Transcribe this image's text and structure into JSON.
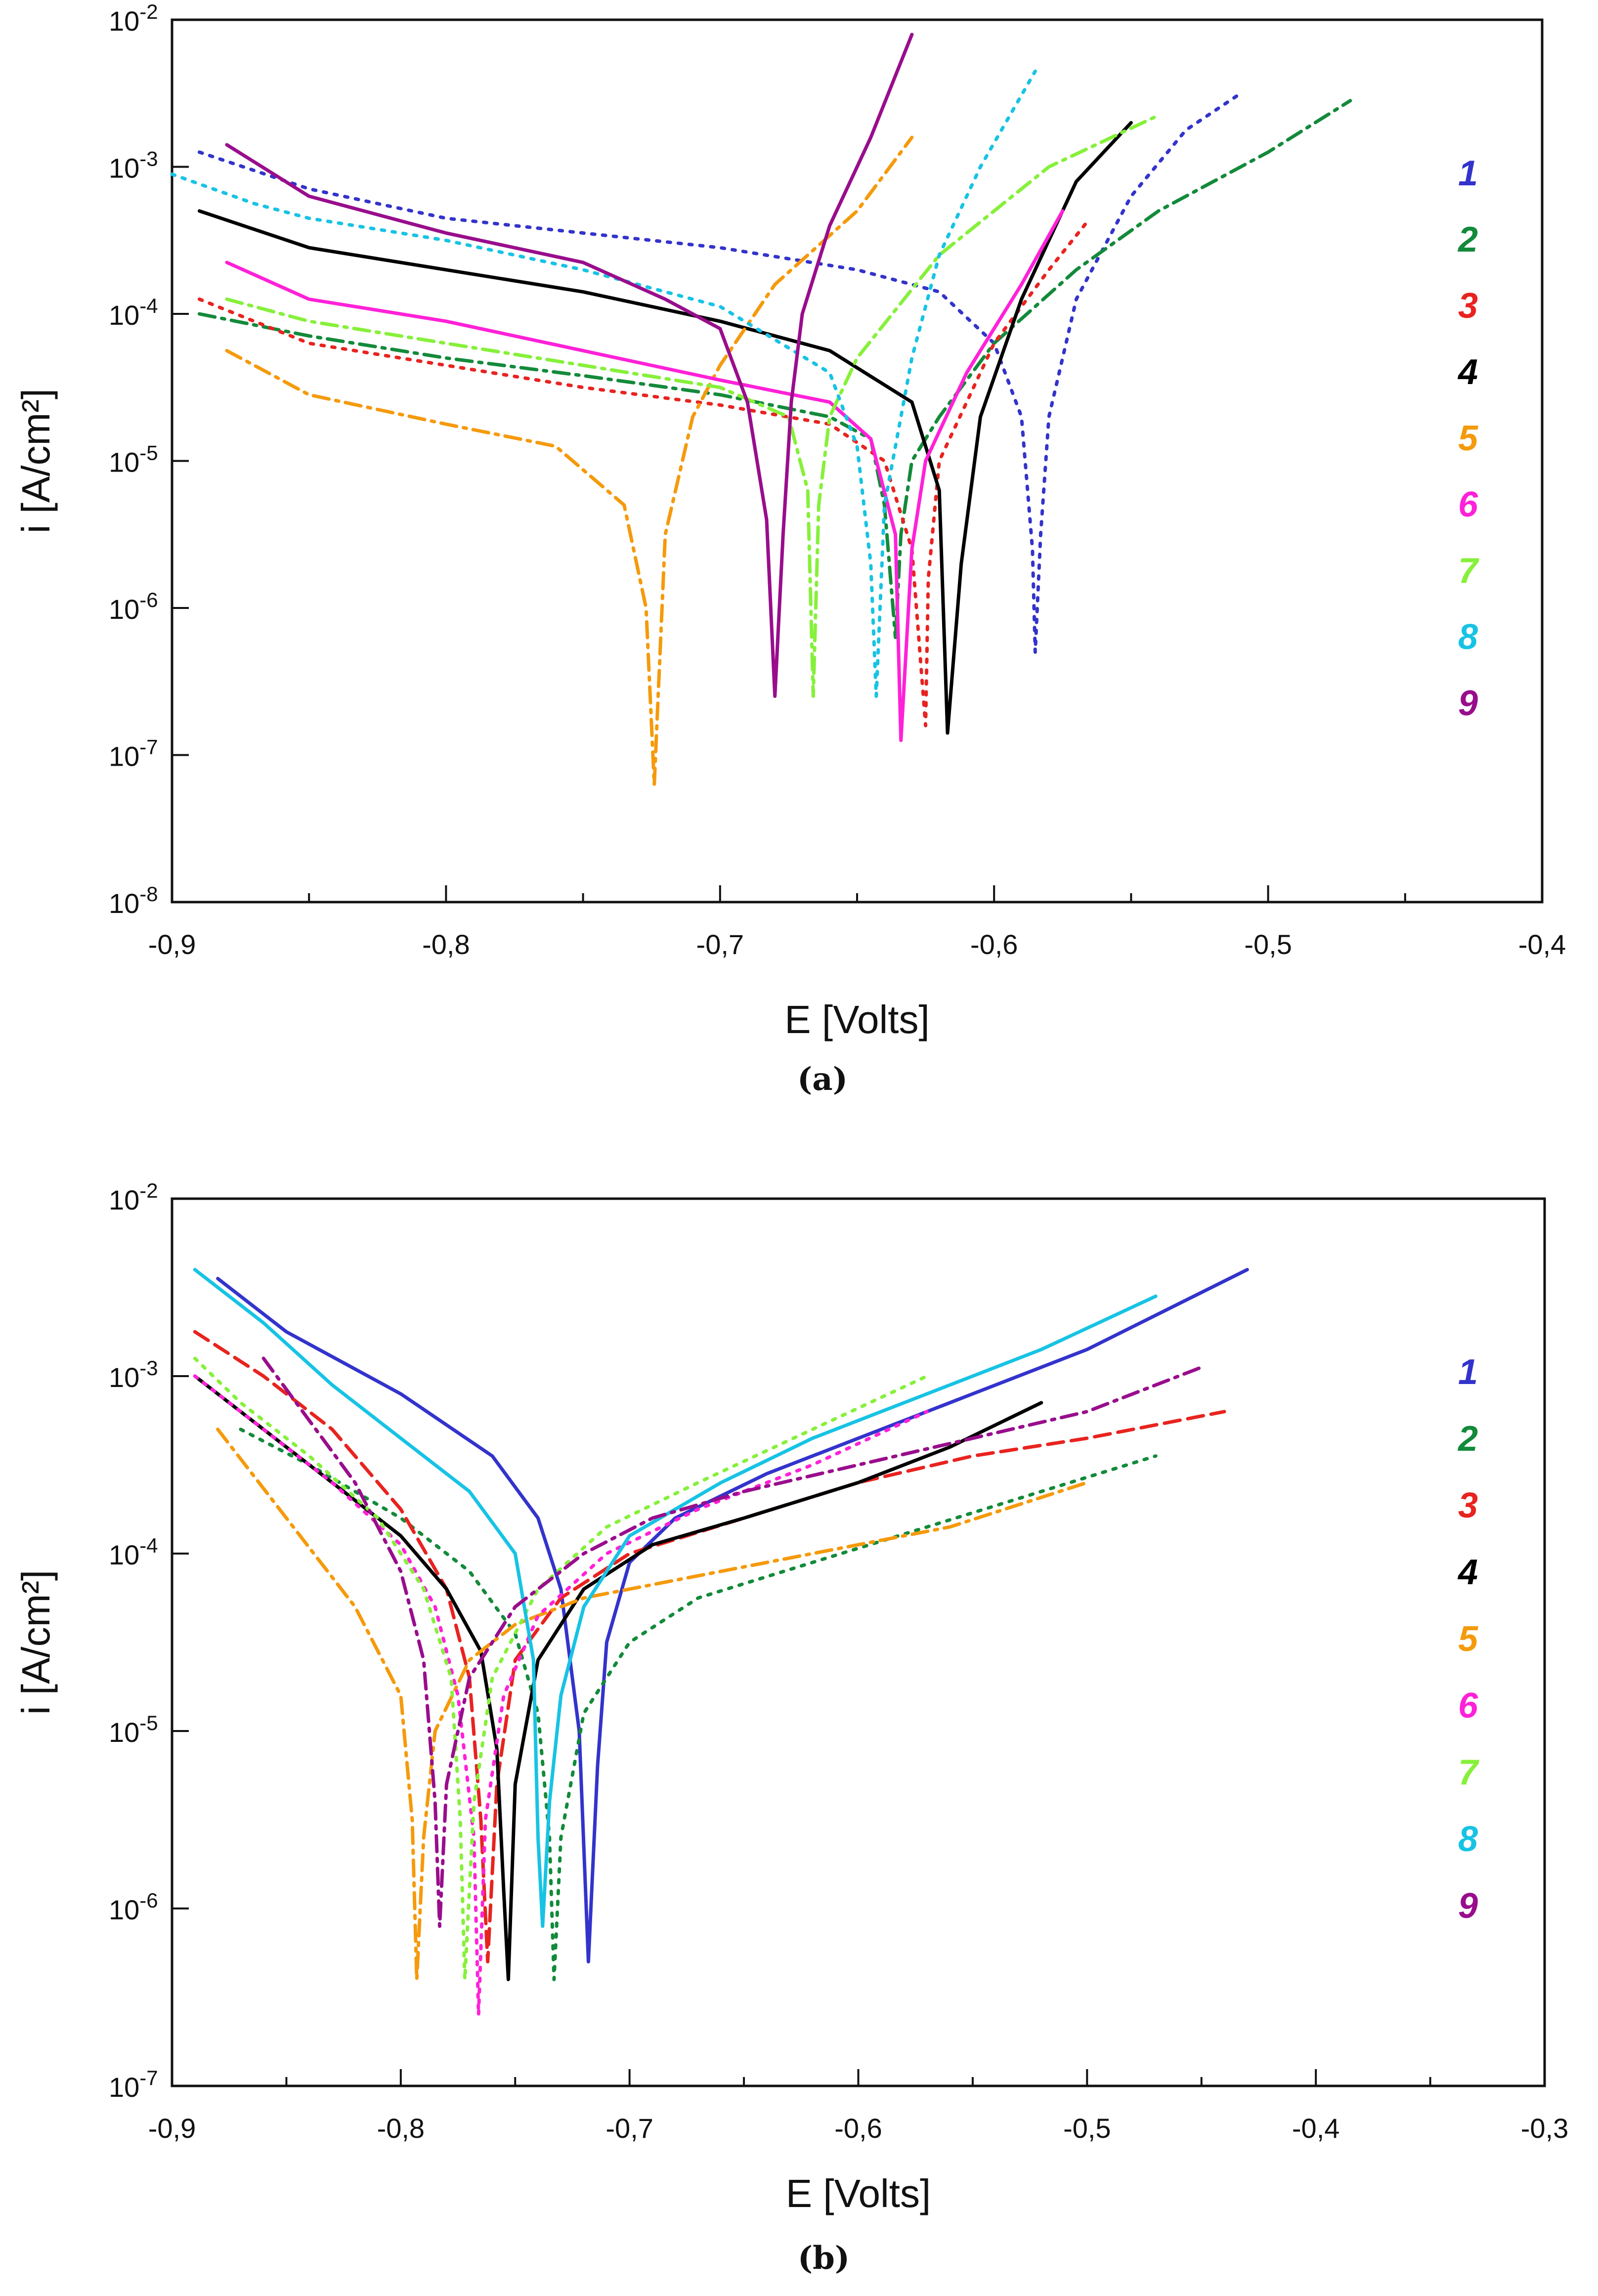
{
  "colors": {
    "1": "#3333cc",
    "2": "#138a3a",
    "3": "#e8231f",
    "4": "#000000",
    "5": "#f59a0c",
    "6": "#ff21d8",
    "7": "#86f03a",
    "8": "#17c3e4",
    "9": "#990d8c"
  },
  "chart_data": [
    {
      "panel": "a",
      "type": "line",
      "caption": "(a)",
      "xlabel": "E [Volts]",
      "ylabel": "i [A/cm²]",
      "xscale": "linear",
      "yscale": "log",
      "xlim": [
        -0.9,
        -0.4
      ],
      "ylim_exp": [
        -8,
        -2
      ],
      "xticks": [
        "-0,9",
        "-0,8",
        "-0,7",
        "-0,6",
        "-0,5",
        "-0,4"
      ],
      "ytick_exps": [
        "-2",
        "-3",
        "-4",
        "-5",
        "-6",
        "-7",
        "-8"
      ],
      "legend": [
        "1",
        "2",
        "3",
        "4",
        "5",
        "6",
        "7",
        "8",
        "9"
      ],
      "series": [
        {
          "name": "1",
          "style": "dot",
          "x": [
            -0.89,
            -0.85,
            -0.8,
            -0.75,
            -0.7,
            -0.65,
            -0.62,
            -0.6,
            -0.59,
            -0.586,
            -0.585,
            -0.583,
            -0.58,
            -0.57,
            -0.55,
            -0.53,
            -0.51
          ],
          "logy": [
            -2.9,
            -3.15,
            -3.35,
            -3.45,
            -3.55,
            -3.7,
            -3.85,
            -4.2,
            -4.7,
            -5.6,
            -6.3,
            -5.5,
            -4.7,
            -3.9,
            -3.2,
            -2.75,
            -2.5
          ]
        },
        {
          "name": "2",
          "style": "dashdot",
          "x": [
            -0.89,
            -0.85,
            -0.8,
            -0.75,
            -0.7,
            -0.66,
            -0.645,
            -0.64,
            -0.636,
            -0.634,
            -0.63,
            -0.62,
            -0.6,
            -0.57,
            -0.54,
            -0.5,
            -0.47
          ],
          "logy": [
            -4.0,
            -4.15,
            -4.3,
            -4.42,
            -4.55,
            -4.7,
            -4.85,
            -5.3,
            -6.2,
            -5.5,
            -5.0,
            -4.7,
            -4.2,
            -3.7,
            -3.3,
            -2.9,
            -2.55
          ]
        },
        {
          "name": "3",
          "style": "dot",
          "x": [
            -0.89,
            -0.85,
            -0.8,
            -0.75,
            -0.7,
            -0.66,
            -0.64,
            -0.63,
            -0.625,
            -0.624,
            -0.62,
            -0.61,
            -0.6,
            -0.58,
            -0.565
          ],
          "logy": [
            -3.9,
            -4.2,
            -4.35,
            -4.5,
            -4.62,
            -4.75,
            -5.0,
            -5.6,
            -6.8,
            -5.8,
            -5.0,
            -4.6,
            -4.2,
            -3.7,
            -3.35
          ]
        },
        {
          "name": "4",
          "style": "solid",
          "x": [
            -0.89,
            -0.85,
            -0.8,
            -0.75,
            -0.7,
            -0.66,
            -0.63,
            -0.62,
            -0.617,
            -0.612,
            -0.605,
            -0.59,
            -0.57,
            -0.55
          ],
          "logy": [
            -3.3,
            -3.55,
            -3.7,
            -3.85,
            -4.05,
            -4.25,
            -4.6,
            -5.2,
            -6.85,
            -5.7,
            -4.7,
            -3.9,
            -3.1,
            -2.7
          ]
        },
        {
          "name": "5",
          "style": "dashdot",
          "x": [
            -0.88,
            -0.85,
            -0.8,
            -0.76,
            -0.735,
            -0.727,
            -0.724,
            -0.72,
            -0.71,
            -0.7,
            -0.68,
            -0.65,
            -0.63
          ],
          "logy": [
            -4.25,
            -4.55,
            -4.75,
            -4.9,
            -5.3,
            -6.0,
            -7.2,
            -5.5,
            -4.7,
            -4.35,
            -3.8,
            -3.3,
            -2.8
          ]
        },
        {
          "name": "6",
          "style": "solid",
          "x": [
            -0.88,
            -0.85,
            -0.8,
            -0.75,
            -0.7,
            -0.66,
            -0.645,
            -0.636,
            -0.634,
            -0.63,
            -0.625,
            -0.61,
            -0.59,
            -0.575
          ],
          "logy": [
            -3.65,
            -3.9,
            -4.05,
            -4.25,
            -4.45,
            -4.6,
            -4.85,
            -5.5,
            -6.9,
            -5.6,
            -5.0,
            -4.4,
            -3.8,
            -3.3
          ]
        },
        {
          "name": "7",
          "style": "dashdot",
          "x": [
            -0.88,
            -0.85,
            -0.8,
            -0.75,
            -0.7,
            -0.675,
            -0.668,
            -0.666,
            -0.664,
            -0.66,
            -0.65,
            -0.62,
            -0.58,
            -0.54
          ],
          "logy": [
            -3.9,
            -4.05,
            -4.2,
            -4.35,
            -4.5,
            -4.7,
            -5.2,
            -6.6,
            -5.3,
            -4.7,
            -4.3,
            -3.6,
            -3.0,
            -2.65
          ]
        },
        {
          "name": "8",
          "style": "dot",
          "x": [
            -0.9,
            -0.87,
            -0.85,
            -0.8,
            -0.75,
            -0.7,
            -0.66,
            -0.65,
            -0.645,
            -0.643,
            -0.64,
            -0.63,
            -0.62,
            -0.605,
            -0.585
          ],
          "logy": [
            -3.05,
            -3.25,
            -3.35,
            -3.5,
            -3.7,
            -3.95,
            -4.4,
            -4.9,
            -5.7,
            -6.6,
            -5.3,
            -4.3,
            -3.6,
            -3.0,
            -2.35
          ]
        },
        {
          "name": "9",
          "style": "solid",
          "x": [
            -0.88,
            -0.85,
            -0.8,
            -0.75,
            -0.72,
            -0.7,
            -0.69,
            -0.683,
            -0.68,
            -0.677,
            -0.674,
            -0.67,
            -0.66,
            -0.645,
            -0.63
          ],
          "logy": [
            -2.85,
            -3.2,
            -3.45,
            -3.65,
            -3.9,
            -4.1,
            -4.6,
            -5.4,
            -6.6,
            -5.5,
            -4.6,
            -4.0,
            -3.4,
            -2.8,
            -2.1
          ]
        }
      ]
    },
    {
      "panel": "b",
      "type": "line",
      "caption": "(b)",
      "xlabel": "E [Volts]",
      "ylabel": "i [A/cm²]",
      "xscale": "linear",
      "yscale": "log",
      "xlim": [
        -0.9,
        -0.3
      ],
      "ylim_exp": [
        -7,
        -2
      ],
      "xticks": [
        "-0,9",
        "-0,8",
        "-0,7",
        "-0,6",
        "-0,5",
        "-0,4",
        "-0,3"
      ],
      "ytick_exps": [
        "-2",
        "-3",
        "-4",
        "-5",
        "-6",
        "-7"
      ],
      "legend": [
        "1",
        "2",
        "3",
        "4",
        "5",
        "6",
        "7",
        "8",
        "9"
      ],
      "series": [
        {
          "name": "1",
          "style": "solid",
          "x": [
            -0.88,
            -0.85,
            -0.8,
            -0.76,
            -0.74,
            -0.73,
            -0.722,
            -0.718,
            -0.714,
            -0.71,
            -0.7,
            -0.68,
            -0.64,
            -0.6,
            -0.55,
            -0.5,
            -0.43
          ],
          "logy": [
            -2.45,
            -2.75,
            -3.1,
            -3.45,
            -3.8,
            -4.2,
            -5.0,
            -6.3,
            -5.2,
            -4.5,
            -4.05,
            -3.8,
            -3.55,
            -3.35,
            -3.1,
            -2.85,
            -2.4
          ]
        },
        {
          "name": "2",
          "style": "dot",
          "x": [
            -0.87,
            -0.84,
            -0.8,
            -0.77,
            -0.75,
            -0.74,
            -0.735,
            -0.733,
            -0.73,
            -0.72,
            -0.7,
            -0.67,
            -0.62,
            -0.57,
            -0.52,
            -0.47
          ],
          "logy": [
            -3.3,
            -3.5,
            -3.8,
            -4.1,
            -4.45,
            -4.9,
            -5.6,
            -6.4,
            -5.6,
            -4.9,
            -4.5,
            -4.25,
            -4.05,
            -3.85,
            -3.65,
            -3.45
          ]
        },
        {
          "name": "3",
          "style": "dash",
          "x": [
            -0.89,
            -0.86,
            -0.83,
            -0.8,
            -0.78,
            -0.77,
            -0.765,
            -0.762,
            -0.758,
            -0.75,
            -0.73,
            -0.7,
            -0.65,
            -0.6,
            -0.55,
            -0.5,
            -0.44
          ],
          "logy": [
            -2.75,
            -3.0,
            -3.3,
            -3.75,
            -4.2,
            -4.7,
            -5.5,
            -6.3,
            -5.3,
            -4.6,
            -4.25,
            -4.0,
            -3.8,
            -3.6,
            -3.45,
            -3.35,
            -3.2
          ]
        },
        {
          "name": "4",
          "style": "solid",
          "x": [
            -0.89,
            -0.86,
            -0.83,
            -0.8,
            -0.78,
            -0.765,
            -0.758,
            -0.755,
            -0.753,
            -0.75,
            -0.74,
            -0.72,
            -0.69,
            -0.65,
            -0.6,
            -0.56,
            -0.52
          ],
          "logy": [
            -3.0,
            -3.3,
            -3.6,
            -3.9,
            -4.2,
            -4.55,
            -5.1,
            -5.9,
            -6.4,
            -5.3,
            -4.6,
            -4.2,
            -3.95,
            -3.8,
            -3.6,
            -3.4,
            -3.15
          ]
        },
        {
          "name": "5",
          "style": "dashdot",
          "x": [
            -0.88,
            -0.85,
            -0.82,
            -0.8,
            -0.795,
            -0.793,
            -0.79,
            -0.785,
            -0.77,
            -0.75,
            -0.72,
            -0.68,
            -0.62,
            -0.56,
            -0.5
          ],
          "logy": [
            -3.3,
            -3.8,
            -4.3,
            -4.8,
            -5.5,
            -6.4,
            -5.6,
            -5.0,
            -4.6,
            -4.4,
            -4.25,
            -4.15,
            -4.0,
            -3.85,
            -3.6
          ]
        },
        {
          "name": "6",
          "style": "dot",
          "x": [
            -0.89,
            -0.86,
            -0.83,
            -0.8,
            -0.785,
            -0.775,
            -0.768,
            -0.766,
            -0.763,
            -0.755,
            -0.74,
            -0.71,
            -0.67,
            -0.62,
            -0.57
          ],
          "logy": [
            -3.0,
            -3.3,
            -3.6,
            -3.95,
            -4.3,
            -4.8,
            -5.6,
            -6.6,
            -5.5,
            -4.8,
            -4.35,
            -4.0,
            -3.75,
            -3.5,
            -3.2
          ]
        },
        {
          "name": "7",
          "style": "dot",
          "x": [
            -0.89,
            -0.87,
            -0.84,
            -0.81,
            -0.79,
            -0.778,
            -0.774,
            -0.772,
            -0.768,
            -0.76,
            -0.74,
            -0.71,
            -0.67,
            -0.62,
            -0.57
          ],
          "logy": [
            -2.9,
            -3.15,
            -3.45,
            -3.8,
            -4.2,
            -4.7,
            -5.5,
            -6.4,
            -5.4,
            -4.7,
            -4.2,
            -3.85,
            -3.6,
            -3.3,
            -3.0
          ]
        },
        {
          "name": "8",
          "style": "solid",
          "x": [
            -0.89,
            -0.86,
            -0.83,
            -0.8,
            -0.77,
            -0.75,
            -0.742,
            -0.74,
            -0.738,
            -0.735,
            -0.73,
            -0.72,
            -0.7,
            -0.66,
            -0.62,
            -0.57,
            -0.52,
            -0.47
          ],
          "logy": [
            -2.4,
            -2.7,
            -3.05,
            -3.35,
            -3.65,
            -4.0,
            -4.6,
            -5.6,
            -6.1,
            -5.4,
            -4.8,
            -4.3,
            -3.9,
            -3.6,
            -3.35,
            -3.1,
            -2.85,
            -2.55
          ]
        },
        {
          "name": "9",
          "style": "dashdot",
          "x": [
            -0.86,
            -0.84,
            -0.82,
            -0.8,
            -0.79,
            -0.785,
            -0.783,
            -0.78,
            -0.77,
            -0.75,
            -0.72,
            -0.69,
            -0.65,
            -0.6,
            -0.55,
            -0.5,
            -0.45
          ],
          "logy": [
            -2.9,
            -3.25,
            -3.6,
            -4.1,
            -4.6,
            -5.4,
            -6.1,
            -5.3,
            -4.7,
            -4.3,
            -4.0,
            -3.8,
            -3.65,
            -3.5,
            -3.35,
            -3.2,
            -2.95
          ]
        }
      ]
    }
  ]
}
